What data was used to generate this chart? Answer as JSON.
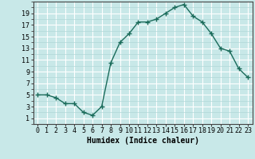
{
  "x": [
    0,
    1,
    2,
    3,
    4,
    5,
    6,
    7,
    8,
    9,
    10,
    11,
    12,
    13,
    14,
    15,
    16,
    17,
    18,
    19,
    20,
    21,
    22,
    23
  ],
  "y": [
    5,
    5,
    4.5,
    3.5,
    3.5,
    2,
    1.5,
    3,
    10.5,
    14,
    15.5,
    17.5,
    17.5,
    18,
    19,
    20,
    20.5,
    18.5,
    17.5,
    15.5,
    13,
    12.5,
    9.5,
    8
  ],
  "line_color": "#1a6b5a",
  "marker": "+",
  "bg_color": "#c8e8e8",
  "grid_major_color": "#ffffff",
  "grid_minor_color": "#b0d8d8",
  "xlabel": "Humidex (Indice chaleur)",
  "xlabel_fontsize": 7,
  "tick_fontsize": 6,
  "ylim": [
    0,
    21
  ],
  "xlim": [
    -0.5,
    23.5
  ],
  "yticks": [
    1,
    3,
    5,
    7,
    9,
    11,
    13,
    15,
    17,
    19
  ],
  "xticks": [
    0,
    1,
    2,
    3,
    4,
    5,
    6,
    7,
    8,
    9,
    10,
    11,
    12,
    13,
    14,
    15,
    16,
    17,
    18,
    19,
    20,
    21,
    22,
    23
  ]
}
